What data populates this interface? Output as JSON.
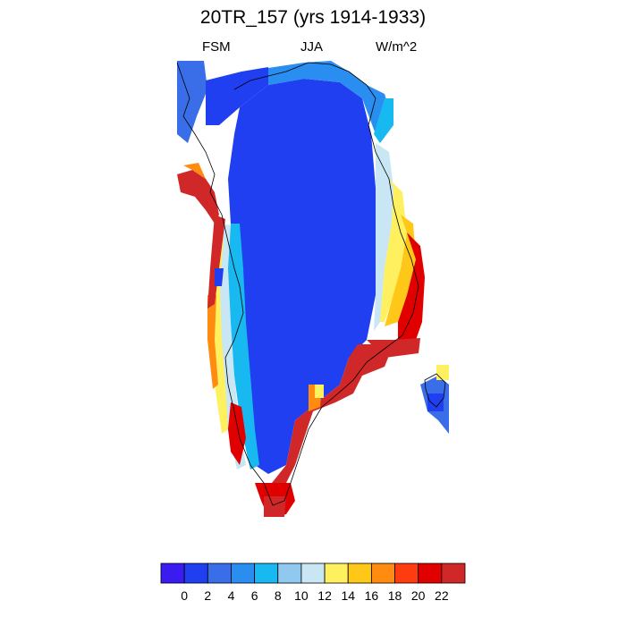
{
  "title": "20TR_157 (yrs 1914-1933)",
  "subtitle_left": "FSM",
  "subtitle_center": "JJA",
  "subtitle_right": "W/m^2",
  "colorbar": {
    "colors": [
      "#3a1cf0",
      "#1f3ff0",
      "#3a6ee8",
      "#2a8ef0",
      "#18b8f0",
      "#90c8f0",
      "#c8e6f4",
      "#fff060",
      "#ffc818",
      "#ff8c10",
      "#ff3c10",
      "#e00000",
      "#d02828"
    ],
    "tick_labels": [
      "0",
      "2",
      "4",
      "6",
      "8",
      "10",
      "12",
      "14",
      "16",
      "18",
      "20",
      "22"
    ]
  }
}
